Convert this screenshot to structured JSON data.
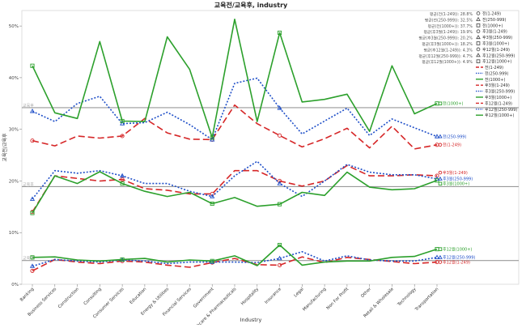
{
  "chart_data": {
    "type": "line",
    "title": "교육전/교육후, industry",
    "xlabel": "Industry",
    "ylabel": "교육전/교육후",
    "ylim": [
      0,
      53
    ],
    "yticks": [
      0,
      10,
      20,
      30,
      40,
      50
    ],
    "ytick_labels": [
      "0%",
      "10%",
      "20%",
      "30%",
      "40%",
      "50%"
    ],
    "grid": false,
    "legend_position": "top-right",
    "categories": [
      "Banking",
      "Business Services",
      "Construction",
      "Consulting",
      "Consumer Services",
      "Education",
      "Energy & Utilities",
      "Financial Services",
      "Government",
      "Healthcare & Pharmaceuticals",
      "Hospitality",
      "Insurance",
      "Legal",
      "Manufacturing",
      "Non For Profit",
      "Other",
      "Retail & Wholesale",
      "Technology",
      "Transportation"
    ],
    "reference_lines": [
      {
        "value": 34.2,
        "label": "교육후",
        "color": "#999999"
      },
      {
        "value": 18.9,
        "label": "교육후",
        "color": "#999999"
      },
      {
        "value": 4.6,
        "label": "교육후",
        "color": "#999999"
      }
    ],
    "stats": [
      "평균(전(1-249)): 28.8%",
      "평균(전(250-999)): 32.5%",
      "평균(전(1000+)): 37.7%",
      "평균(후3월(1-249)): 19.9%",
      "평균(후3월(250-999)): 20.2%",
      "평균(후3월(1000+)): 18.2%",
      "평균(후12월(1-249)): 4.3%",
      "평균(후12월(250-999)): 4.7%",
      "평균(후12월(1000+)): 4.9%"
    ],
    "legend": [
      {
        "label": "전(1-249)",
        "marker": "circle",
        "dash": "8,4",
        "color": "#d62728"
      },
      {
        "label": "전(250-999)",
        "marker": "triangle",
        "dash": "2,2",
        "color": "#1f4fc8"
      },
      {
        "label": "전(1000+)",
        "marker": "square",
        "dash": "",
        "color": "#2ca02c"
      },
      {
        "label": "후3월(1-249)",
        "marker": "circle",
        "dash": "8,4",
        "color": "#d62728"
      },
      {
        "label": "후3월(250-999)",
        "marker": "triangle",
        "dash": "2,2",
        "color": "#1f4fc8"
      },
      {
        "label": "후3월(1000+)",
        "marker": "square",
        "dash": "",
        "color": "#2ca02c"
      },
      {
        "label": "후12월(1-249)",
        "marker": "circle",
        "dash": "8,4",
        "color": "#d62728"
      },
      {
        "label": "후12월(250-999)",
        "marker": "triangle",
        "dash": "2,2",
        "color": "#1f4fc8"
      },
      {
        "label": "후12월(1000+)",
        "marker": "square",
        "dash": "",
        "color": "#2ca02c"
      }
    ],
    "series": [
      {
        "name": "전(1-249)",
        "label": "전(1-249)",
        "color": "#d62728",
        "dash": "8,4",
        "width": 1.6,
        "values": [
          27.8,
          26.8,
          28.7,
          28.3,
          28.7,
          32.1,
          29.3,
          28.1,
          28.0,
          34.7,
          31.1,
          28.8,
          26.6,
          28.2,
          30.2,
          26.4,
          30.6,
          26.2,
          27.0
        ]
      },
      {
        "name": "전(250-999)",
        "label": "전(250-999)",
        "color": "#1f4fc8",
        "dash": "2,2",
        "width": 1.6,
        "values": [
          33.5,
          31.5,
          35.0,
          36.4,
          31.1,
          31.3,
          33.3,
          30.9,
          28.0,
          38.9,
          39.9,
          34.1,
          29.1,
          31.6,
          34.1,
          28.8,
          32.0,
          30.3,
          28.6
        ]
      },
      {
        "name": "전(1000+)",
        "label": "전(1000+)",
        "color": "#2ca02c",
        "dash": "",
        "width": 1.6,
        "values": [
          42.3,
          33.2,
          32.1,
          47.0,
          31.6,
          31.5,
          47.9,
          41.6,
          28.4,
          51.3,
          31.5,
          48.7,
          35.3,
          35.8,
          36.8,
          29.6,
          42.3,
          33.0,
          35.0
        ]
      },
      {
        "name": "후3월(1-249)",
        "label": "후3월(1-249)",
        "color": "#d62728",
        "dash": "8,4",
        "width": 1.6,
        "values": [
          14.0,
          21.0,
          20.5,
          20.0,
          20.3,
          18.5,
          18.2,
          17.5,
          17.5,
          22.0,
          22.0,
          20.0,
          19.0,
          20.0,
          23.0,
          21.0,
          21.0,
          21.2,
          21.0
        ]
      },
      {
        "name": "후3월(250-999)",
        "label": "후3월(250-999)",
        "color": "#1f4fc8",
        "dash": "2,2",
        "width": 1.6,
        "values": [
          16.5,
          22.0,
          21.5,
          22.0,
          21.0,
          19.5,
          19.5,
          18.0,
          17.0,
          21.0,
          23.8,
          19.5,
          17.0,
          20.0,
          23.2,
          21.7,
          21.2,
          21.2,
          20.4
        ]
      },
      {
        "name": "후3월(1000+)",
        "label": "후3월(1000+)",
        "color": "#2ca02c",
        "dash": "",
        "width": 1.6,
        "values": [
          13.8,
          21.0,
          19.5,
          21.8,
          19.5,
          18.0,
          17.0,
          17.8,
          15.6,
          16.8,
          15.1,
          15.5,
          17.8,
          17.2,
          21.7,
          18.8,
          18.3,
          18.5,
          20.1
        ]
      },
      {
        "name": "후12월(1-249)",
        "label": "후12월(1-249)",
        "color": "#d62728",
        "dash": "8,4",
        "width": 1.6,
        "values": [
          2.6,
          4.8,
          4.3,
          4.0,
          4.5,
          4.3,
          3.7,
          3.3,
          4.2,
          5.0,
          3.8,
          3.7,
          5.3,
          4.2,
          5.2,
          4.8,
          4.4,
          4.0,
          4.3
        ]
      },
      {
        "name": "후12월(250-999)",
        "label": "후12월(250-999)",
        "color": "#1f4fc8",
        "dash": "2,2",
        "width": 1.6,
        "values": [
          3.5,
          4.8,
          4.5,
          4.3,
          4.7,
          4.5,
          4.0,
          4.3,
          4.3,
          4.3,
          4.2,
          5.0,
          6.3,
          4.5,
          5.5,
          4.7,
          4.5,
          4.5,
          5.2
        ]
      },
      {
        "name": "후12월(1000+)",
        "label": "후12월(1000+)",
        "color": "#2ca02c",
        "dash": "",
        "width": 1.6,
        "values": [
          5.2,
          5.3,
          4.7,
          4.5,
          4.8,
          5.0,
          4.3,
          4.7,
          4.5,
          5.5,
          3.6,
          7.6,
          3.7,
          4.3,
          4.5,
          4.5,
          5.2,
          5.4,
          6.8
        ]
      }
    ],
    "end_labels": [
      {
        "series": 2,
        "text": "전(1000+)"
      },
      {
        "series": 1,
        "text": "전(250-999)"
      },
      {
        "series": 0,
        "text": "전(1-249)"
      },
      {
        "series": 3,
        "text": "후3월(1-249)"
      },
      {
        "series": 4,
        "text": "후3월(250-999)"
      },
      {
        "series": 5,
        "text": "후3월(1000+)"
      },
      {
        "series": 8,
        "text": "후12월(1000+)"
      },
      {
        "series": 7,
        "text": "후12월(250-999)"
      },
      {
        "series": 6,
        "text": "후12월(1-249)"
      }
    ]
  }
}
